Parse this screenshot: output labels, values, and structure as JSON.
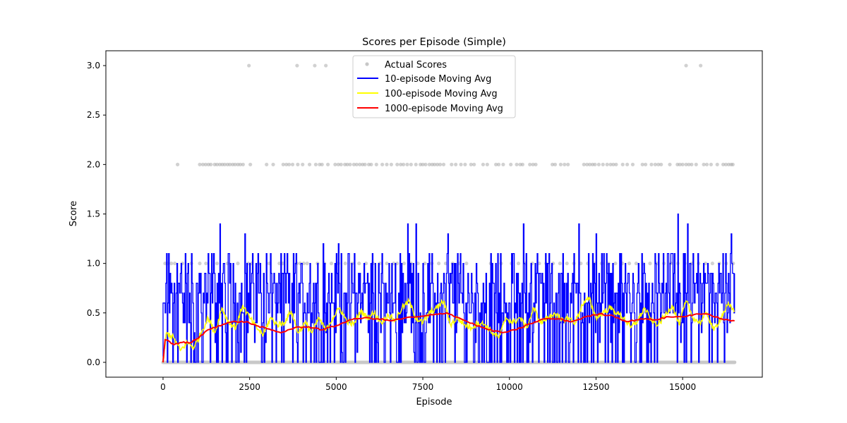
{
  "chart_data": {
    "type": "line",
    "title": "Scores per Episode (Simple)",
    "xlabel": "Episode",
    "ylabel": "Score",
    "xlim": [
      -1650,
      17300
    ],
    "ylim": [
      -0.15,
      3.15
    ],
    "x_ticks": [
      0,
      2500,
      5000,
      7500,
      10000,
      12500,
      15000
    ],
    "x_tick_labels": [
      "0",
      "2500",
      "5000",
      "7500",
      "10000",
      "12500",
      "15000"
    ],
    "y_ticks": [
      0.0,
      0.5,
      1.0,
      1.5,
      2.0,
      2.5,
      3.0
    ],
    "y_tick_labels": [
      "0.0",
      "0.5",
      "1.0",
      "1.5",
      "2.0",
      "2.5",
      "3.0"
    ],
    "legend_position": "top-center",
    "grid": false,
    "series": [
      {
        "name": "Actual Scores",
        "kind": "scatter",
        "color": "#808080",
        "points_score_3": [
          2480,
          3870,
          4380,
          4700,
          15100,
          15520
        ],
        "points_score_2": [
          420,
          1060,
          1150,
          1230,
          1310,
          1380,
          1490,
          1560,
          1640,
          1710,
          1780,
          1860,
          1930,
          2010,
          2080,
          2160,
          2230,
          2310,
          2520,
          2990,
          3180,
          3470,
          3560,
          3640,
          3740,
          3890,
          4030,
          4230,
          4410,
          4520,
          4590,
          4760,
          4970,
          5060,
          5140,
          5250,
          5320,
          5400,
          5510,
          5590,
          5680,
          5760,
          5830,
          5940,
          6010,
          6160,
          6330,
          6460,
          6590,
          6760,
          6860,
          6940,
          7050,
          7160,
          7300,
          7430,
          7500,
          7580,
          7690,
          7770,
          7840,
          7920,
          8000,
          8100,
          8330,
          8450,
          8600,
          8720,
          8890,
          8980,
          9240,
          9360,
          9610,
          9690,
          9820,
          10040,
          10210,
          10310,
          10380,
          10590,
          10680,
          10760,
          11240,
          11320,
          11480,
          11590,
          11690,
          12150,
          12240,
          12320,
          12400,
          12470,
          12580,
          12700,
          12820,
          12920,
          13000,
          13080,
          13270,
          13400,
          13560,
          13840,
          13930,
          14100,
          14210,
          14300,
          14380,
          14630,
          14850,
          14920,
          15000,
          15100,
          15180,
          15260,
          15390,
          15610,
          15700,
          15820,
          16000,
          16170,
          16250,
          16330,
          16400,
          16450
        ],
        "points_score_1": [
          60,
          130,
          240,
          340,
          560,
          820,
          1060,
          1240,
          1560,
          1860,
          2160,
          2460,
          2560,
          2760,
          3060,
          3360,
          3460,
          3860,
          3960,
          4060,
          4160,
          4460,
          4660,
          4860,
          5060,
          5260,
          5460,
          5660,
          5860,
          6060,
          6260,
          6460,
          6660,
          6760,
          6960,
          7160,
          7360,
          7560,
          7760,
          7960,
          8160,
          8360,
          8560,
          8760,
          9460,
          9760,
          10060,
          10260,
          10460,
          10660,
          10860,
          11060,
          11260,
          11460,
          11660,
          11860,
          12060,
          12260,
          12460,
          12660,
          12860,
          13060,
          13260,
          13460,
          13660,
          13860,
          14060,
          14260,
          14460,
          14660,
          14860,
          15060,
          15260,
          15460,
          15660,
          15860,
          16060,
          16260,
          16460
        ],
        "zero_band": [
          0,
          16500
        ]
      },
      {
        "name": "10-episode Moving Avg",
        "kind": "line",
        "color": "#0000ff",
        "x_start": 0,
        "x_end": 16500,
        "peaks": [
          {
            "x": 80,
            "y": 0.8
          },
          {
            "x": 1640,
            "y": 1.4
          },
          {
            "x": 2350,
            "y": 1.3
          },
          {
            "x": 4620,
            "y": 1.2
          },
          {
            "x": 5050,
            "y": 1.2
          },
          {
            "x": 7050,
            "y": 1.4
          },
          {
            "x": 7300,
            "y": 1.4
          },
          {
            "x": 8220,
            "y": 1.3
          },
          {
            "x": 10400,
            "y": 1.4
          },
          {
            "x": 12000,
            "y": 1.4
          },
          {
            "x": 12500,
            "y": 1.3
          },
          {
            "x": 14850,
            "y": 1.5
          },
          {
            "x": 15140,
            "y": 1.4
          },
          {
            "x": 16400,
            "y": 1.3
          }
        ],
        "mean_level": 0.42,
        "range": [
          0.0,
          1.5
        ]
      },
      {
        "name": "100-episode Moving Avg",
        "kind": "line",
        "color": "#ffff00",
        "x": [
          0,
          100,
          300,
          500,
          700,
          900,
          1100,
          1300,
          1500,
          1700,
          1900,
          2100,
          2300,
          2500,
          2700,
          2900,
          3100,
          3300,
          3500,
          3700,
          3900,
          4100,
          4300,
          4500,
          4700,
          4900,
          5100,
          5300,
          5500,
          5700,
          5900,
          6100,
          6300,
          6500,
          6700,
          6900,
          7100,
          7300,
          7500,
          7700,
          7900,
          8100,
          8300,
          8500,
          8700,
          8900,
          9100,
          9300,
          9500,
          9700,
          9900,
          10100,
          10300,
          10500,
          10700,
          10900,
          11100,
          11300,
          11500,
          11700,
          11900,
          12100,
          12300,
          12500,
          12700,
          12900,
          13100,
          13300,
          13500,
          13700,
          13900,
          14100,
          14300,
          14500,
          14700,
          14900,
          15100,
          15300,
          15500,
          15700,
          15900,
          16100,
          16300,
          16500
        ],
        "values": [
          0.0,
          0.3,
          0.25,
          0.12,
          0.2,
          0.15,
          0.3,
          0.45,
          0.3,
          0.55,
          0.4,
          0.35,
          0.58,
          0.45,
          0.35,
          0.28,
          0.45,
          0.38,
          0.4,
          0.52,
          0.3,
          0.4,
          0.3,
          0.45,
          0.32,
          0.45,
          0.55,
          0.42,
          0.38,
          0.52,
          0.45,
          0.5,
          0.4,
          0.48,
          0.42,
          0.55,
          0.62,
          0.45,
          0.4,
          0.5,
          0.55,
          0.62,
          0.38,
          0.45,
          0.38,
          0.35,
          0.4,
          0.38,
          0.3,
          0.25,
          0.45,
          0.4,
          0.45,
          0.35,
          0.55,
          0.4,
          0.45,
          0.5,
          0.42,
          0.45,
          0.4,
          0.58,
          0.65,
          0.45,
          0.5,
          0.55,
          0.5,
          0.45,
          0.35,
          0.42,
          0.55,
          0.42,
          0.38,
          0.48,
          0.58,
          0.38,
          0.62,
          0.45,
          0.4,
          0.5,
          0.32,
          0.45,
          0.58,
          0.52
        ]
      },
      {
        "name": "1000-episode Moving Avg",
        "kind": "line",
        "color": "#ff0000",
        "x": [
          0,
          60,
          150,
          300,
          500,
          800,
          1000,
          1300,
          1600,
          2000,
          2400,
          2700,
          3000,
          3400,
          3800,
          4200,
          4600,
          5000,
          5400,
          5800,
          6200,
          6600,
          7000,
          7400,
          7800,
          8200,
          8600,
          9000,
          9400,
          9800,
          10200,
          10600,
          11000,
          11400,
          11800,
          12200,
          12600,
          13000,
          13400,
          13800,
          14200,
          14600,
          15000,
          15400,
          15800,
          16200,
          16500
        ],
        "values": [
          0.0,
          0.23,
          0.22,
          0.18,
          0.2,
          0.2,
          0.24,
          0.33,
          0.37,
          0.41,
          0.41,
          0.37,
          0.34,
          0.3,
          0.35,
          0.36,
          0.33,
          0.37,
          0.43,
          0.45,
          0.44,
          0.42,
          0.45,
          0.46,
          0.48,
          0.5,
          0.44,
          0.38,
          0.33,
          0.3,
          0.33,
          0.39,
          0.44,
          0.44,
          0.41,
          0.46,
          0.49,
          0.47,
          0.41,
          0.44,
          0.43,
          0.46,
          0.46,
          0.49,
          0.48,
          0.43,
          0.42
        ]
      }
    ]
  }
}
